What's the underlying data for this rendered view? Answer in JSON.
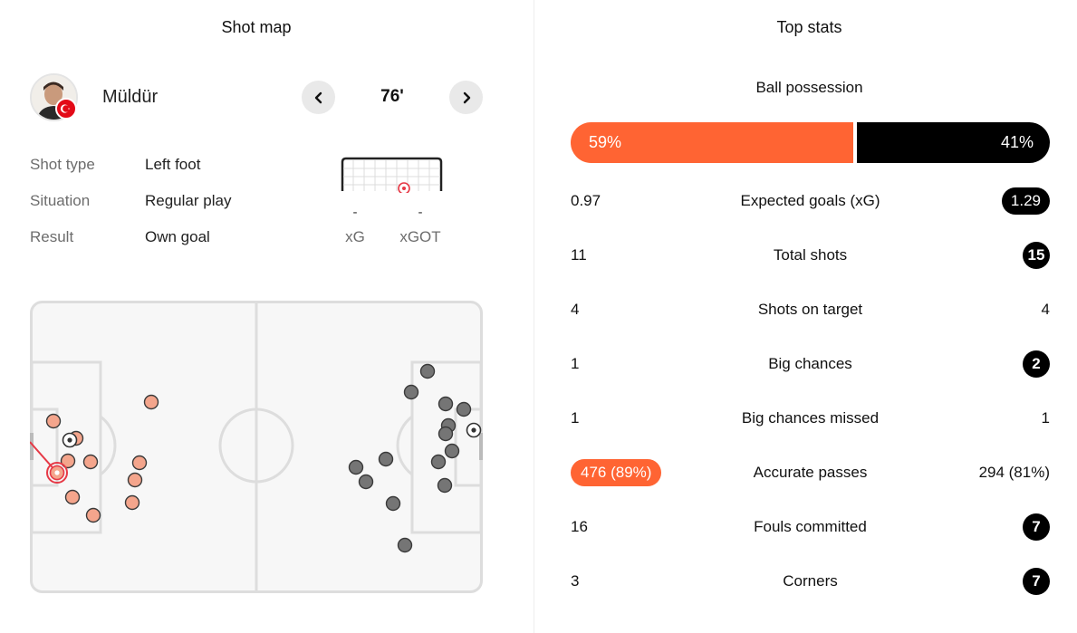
{
  "shot_map": {
    "title": "Shot map",
    "player": {
      "name": "Müldür",
      "flag": "turkey-flag"
    },
    "minute": "76'",
    "details": [
      {
        "label": "Shot type",
        "value": "Left foot"
      },
      {
        "label": "Situation",
        "value": "Regular play"
      },
      {
        "label": "Result",
        "value": "Own goal"
      }
    ],
    "xg": {
      "label": "xG",
      "value": "-"
    },
    "xgot": {
      "label": "xGOT",
      "value": "-"
    },
    "colors": {
      "home": "#f4a58c",
      "away": "#757575",
      "highlight": "#e63946"
    }
  },
  "top_stats": {
    "title": "Top stats",
    "possession": {
      "label": "Ball possession",
      "home": "59%",
      "away": "41%",
      "home_fraction": 0.59
    },
    "rows": [
      {
        "label": "Expected goals (xG)",
        "home": "0.97",
        "away": "1.29",
        "highlight": "away"
      },
      {
        "label": "Total shots",
        "home": "11",
        "away": "15",
        "highlight": "away"
      },
      {
        "label": "Shots on target",
        "home": "4",
        "away": "4",
        "highlight": "none"
      },
      {
        "label": "Big chances",
        "home": "1",
        "away": "2",
        "highlight": "away"
      },
      {
        "label": "Big chances missed",
        "home": "1",
        "away": "1",
        "highlight": "none"
      },
      {
        "label": "Accurate passes",
        "home": "476 (89%)",
        "away": "294 (81%)",
        "highlight": "home"
      },
      {
        "label": "Fouls committed",
        "home": "16",
        "away": "7",
        "highlight": "away"
      },
      {
        "label": "Corners",
        "home": "3",
        "away": "7",
        "highlight": "away"
      }
    ],
    "colors": {
      "home": "#ff6433",
      "away": "#000000"
    }
  }
}
